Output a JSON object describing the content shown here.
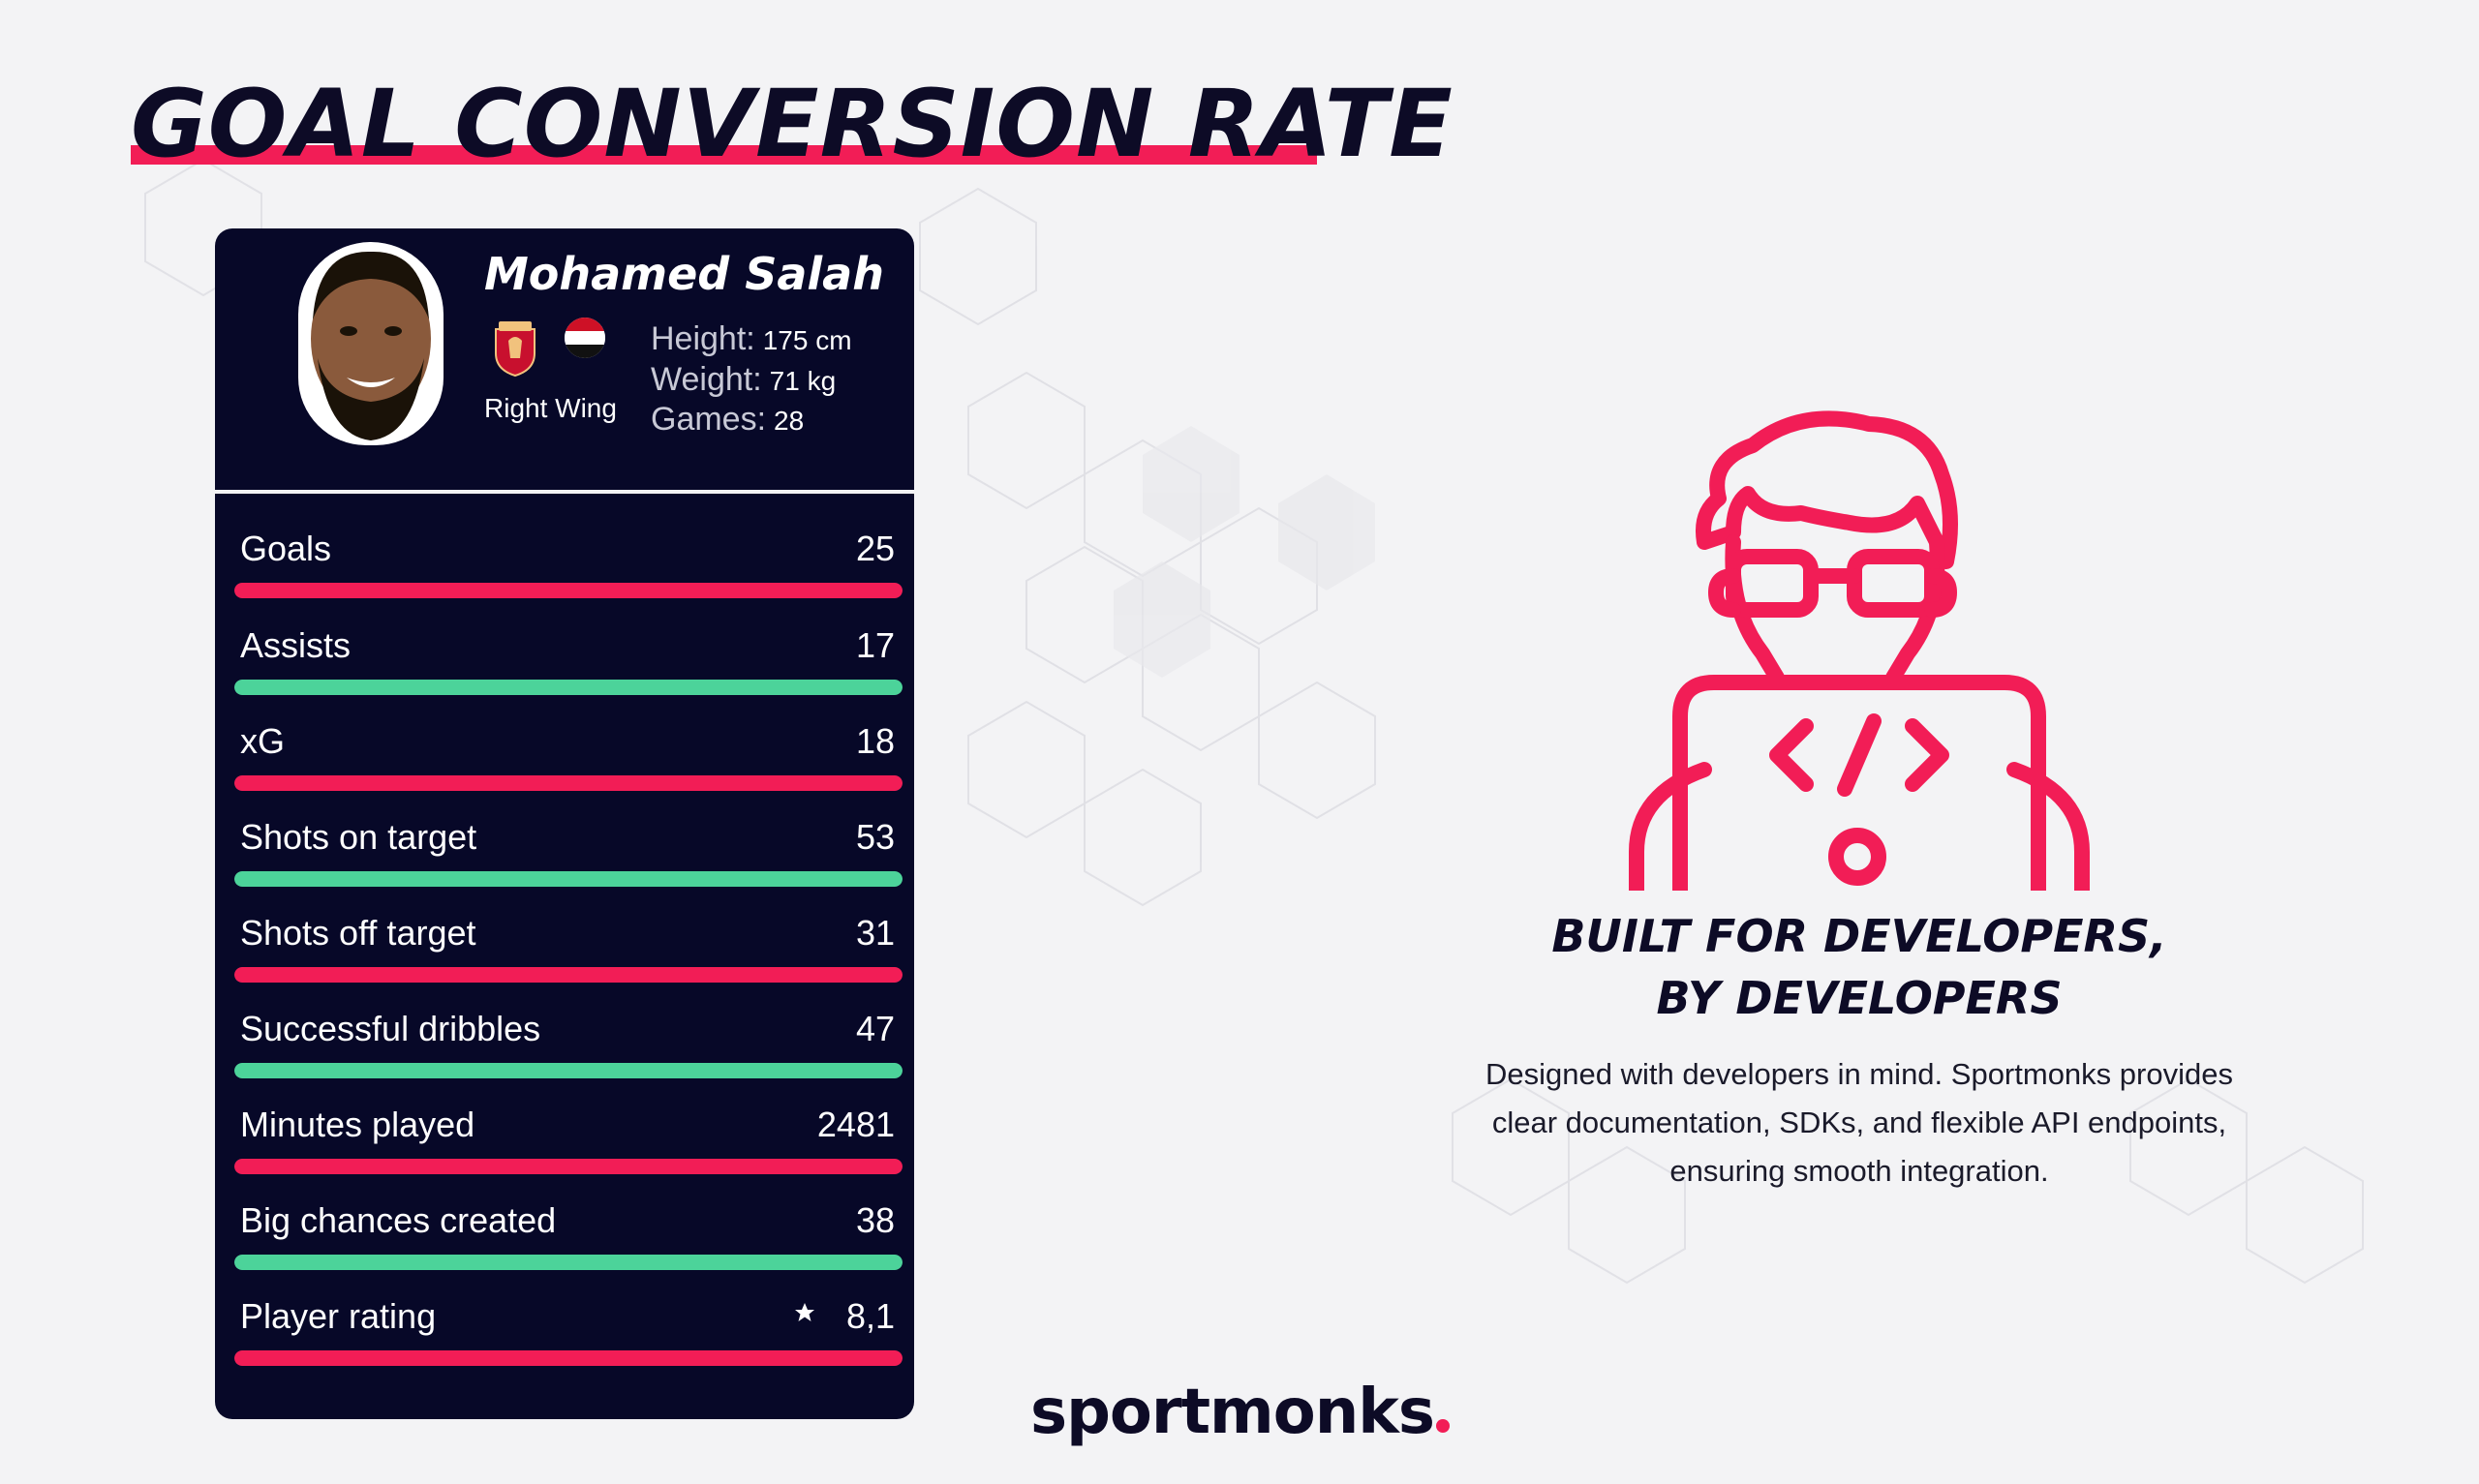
{
  "title": "GOAL CONVERSION RATE",
  "colors": {
    "accent_red": "#f21d56",
    "accent_green": "#4cd39a",
    "navy": "#070828",
    "text_dark": "#0d0b26"
  },
  "player": {
    "name": "Mohamed Salah",
    "position": "Right Wing",
    "club_icon": "liverpool-crest-icon",
    "flag_icon": "egypt-flag-icon",
    "height_label": "Height:",
    "height_value": "175 cm",
    "weight_label": "Weight:",
    "weight_value": "71 kg",
    "games_label": "Games:",
    "games_value": "28"
  },
  "stats": [
    {
      "label": "Goals",
      "value": "25",
      "color": "red",
      "fill": 1.0
    },
    {
      "label": "Assists",
      "value": "17",
      "color": "green",
      "fill": 1.0
    },
    {
      "label": "xG",
      "value": "18",
      "color": "red",
      "fill": 1.0
    },
    {
      "label": "Shots on target",
      "value": "53",
      "color": "green",
      "fill": 1.0
    },
    {
      "label": "Shots off target",
      "value": "31",
      "color": "red",
      "fill": 1.0
    },
    {
      "label": "Successful dribbles",
      "value": "47",
      "color": "green",
      "fill": 1.0
    },
    {
      "label": "Minutes played",
      "value": "2481",
      "color": "red",
      "fill": 1.0
    },
    {
      "label": "Big chances created",
      "value": "38",
      "color": "green",
      "fill": 1.0
    },
    {
      "label": "Player rating",
      "value": "8,1",
      "color": "red",
      "fill": 1.0,
      "icon": "star-icon"
    }
  ],
  "feature": {
    "icon": "developer-icon",
    "headline_line1": "BUILT FOR DEVELOPERS,",
    "headline_line2": "BY DEVELOPERS",
    "desc_line1": "Designed with developers in mind. Sportmonks provides",
    "desc_line2": "clear documentation, SDKs, and flexible API endpoints,",
    "desc_line3": "ensuring smooth integration."
  },
  "logo": {
    "text": "sportmonks"
  }
}
